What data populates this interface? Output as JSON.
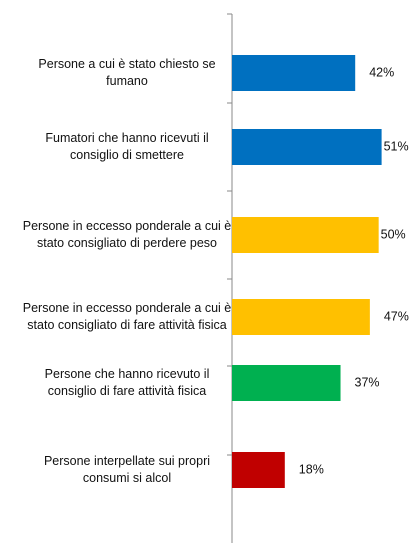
{
  "chart_data": {
    "type": "bar",
    "orientation": "horizontal",
    "categories": [
      "Persone a cui è stato chiesto se fumano",
      "Fumatori che hanno ricevuti il consiglio di smettere",
      "Persone in eccesso ponderale a cui è stato consigliato di perdere peso",
      "Persone in eccesso ponderale a cui è stato consigliato di fare attività fisica",
      "Persone che hanno ricevuto il consiglio di fare attività fisica",
      "Persone interpellate sui propri consumi si alcol"
    ],
    "values": [
      42,
      51,
      50,
      47,
      37,
      18
    ],
    "value_labels": [
      "42%",
      "51%",
      "50%",
      "47%",
      "37%",
      "18%"
    ],
    "colors": [
      "#0070c0",
      "#0070c0",
      "#ffc000",
      "#ffc000",
      "#00b050",
      "#c00000"
    ],
    "xlim": [
      0,
      60
    ]
  }
}
